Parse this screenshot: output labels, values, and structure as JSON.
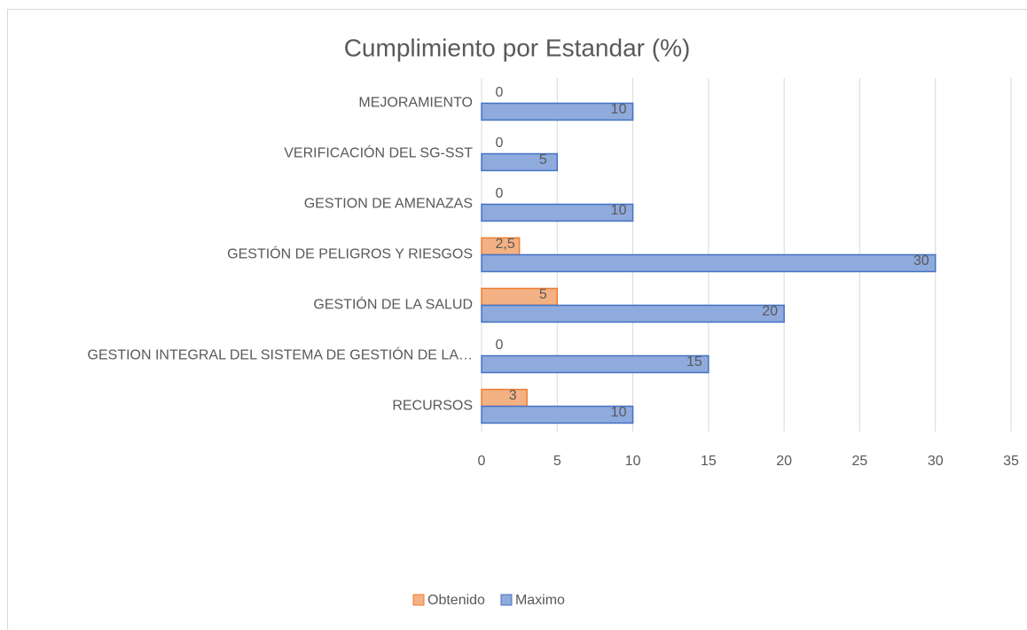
{
  "chart_data": {
    "type": "barh",
    "title": "Cumplimiento por Estandar (%)",
    "categories": [
      "RECURSOS",
      "GESTION INTEGRAL DEL SISTEMA DE GESTIÓN DE LA…",
      "GESTIÓN DE LA SALUD",
      "GESTIÓN DE PELIGROS Y RIESGOS",
      "GESTION DE AMENAZAS",
      "VERIFICACIÓN DEL SG-SST",
      "MEJORAMIENTO"
    ],
    "series": [
      {
        "name": "Obtenido",
        "color": "#f4b183",
        "edge_color": "#ed7d31",
        "values": [
          3,
          0,
          5,
          2.5,
          0,
          0,
          0
        ],
        "value_labels": [
          "3",
          "0",
          "5",
          "2,5",
          "0",
          "0",
          "0"
        ]
      },
      {
        "name": "Maximo",
        "color": "#8faadc",
        "edge_color": "#4472c4",
        "values": [
          10,
          15,
          20,
          30,
          10,
          5,
          10
        ]
      }
    ],
    "xlim": [
      0,
      35
    ],
    "xticks": [
      0,
      5,
      10,
      15,
      20,
      25,
      30,
      35
    ],
    "grid": true,
    "legend": "bottom"
  }
}
